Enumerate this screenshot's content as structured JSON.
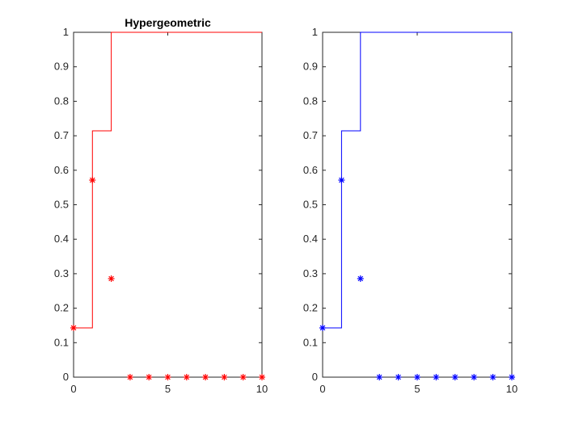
{
  "chart_data": [
    {
      "type": "line",
      "title": "Hypergeometric",
      "xlabel": "",
      "ylabel": "",
      "xlim": [
        0,
        10
      ],
      "ylim": [
        0,
        1
      ],
      "xticks": [
        0,
        5,
        10
      ],
      "yticks": [
        0,
        0.1,
        0.2,
        0.3,
        0.4,
        0.5,
        0.6,
        0.7,
        0.8,
        0.9,
        1
      ],
      "xtick_labels": [
        "0",
        "5",
        "10"
      ],
      "ytick_labels": [
        "0",
        "0.1",
        "0.2",
        "0.3",
        "0.4",
        "0.5",
        "0.6",
        "0.7",
        "0.8",
        "0.9",
        "1"
      ],
      "grid": false,
      "series": [
        {
          "kind": "stairs",
          "color": "#ff0000",
          "x": [
            0,
            1,
            1,
            2,
            2,
            10
          ],
          "y": [
            0.1429,
            0.1429,
            0.7143,
            0.7143,
            1,
            1
          ]
        },
        {
          "kind": "markers",
          "marker": "asterisk",
          "color": "#ff0000",
          "x": [
            0,
            1,
            2,
            3,
            4,
            5,
            6,
            7,
            8,
            9,
            10
          ],
          "y": [
            0.1429,
            0.5714,
            0.2857,
            0,
            0,
            0,
            0,
            0,
            0,
            0,
            0
          ]
        }
      ]
    },
    {
      "type": "line",
      "title": "",
      "xlabel": "",
      "ylabel": "",
      "xlim": [
        0,
        10
      ],
      "ylim": [
        0,
        1
      ],
      "xticks": [
        0,
        5,
        10
      ],
      "yticks": [
        0,
        0.1,
        0.2,
        0.3,
        0.4,
        0.5,
        0.6,
        0.7,
        0.8,
        0.9,
        1
      ],
      "xtick_labels": [
        "0",
        "5",
        "10"
      ],
      "ytick_labels": [
        "0",
        "0.1",
        "0.2",
        "0.3",
        "0.4",
        "0.5",
        "0.6",
        "0.7",
        "0.8",
        "0.9",
        "1"
      ],
      "grid": false,
      "series": [
        {
          "kind": "stairs",
          "color": "#0000ff",
          "x": [
            0,
            1,
            1,
            2,
            2,
            10
          ],
          "y": [
            0.1429,
            0.1429,
            0.7143,
            0.7143,
            1,
            1
          ]
        },
        {
          "kind": "markers",
          "marker": "asterisk",
          "color": "#0000ff",
          "x": [
            0,
            1,
            2,
            3,
            4,
            5,
            6,
            7,
            8,
            9,
            10
          ],
          "y": [
            0.1429,
            0.5714,
            0.2857,
            0,
            0,
            0,
            0,
            0,
            0,
            0,
            0
          ]
        }
      ]
    }
  ]
}
